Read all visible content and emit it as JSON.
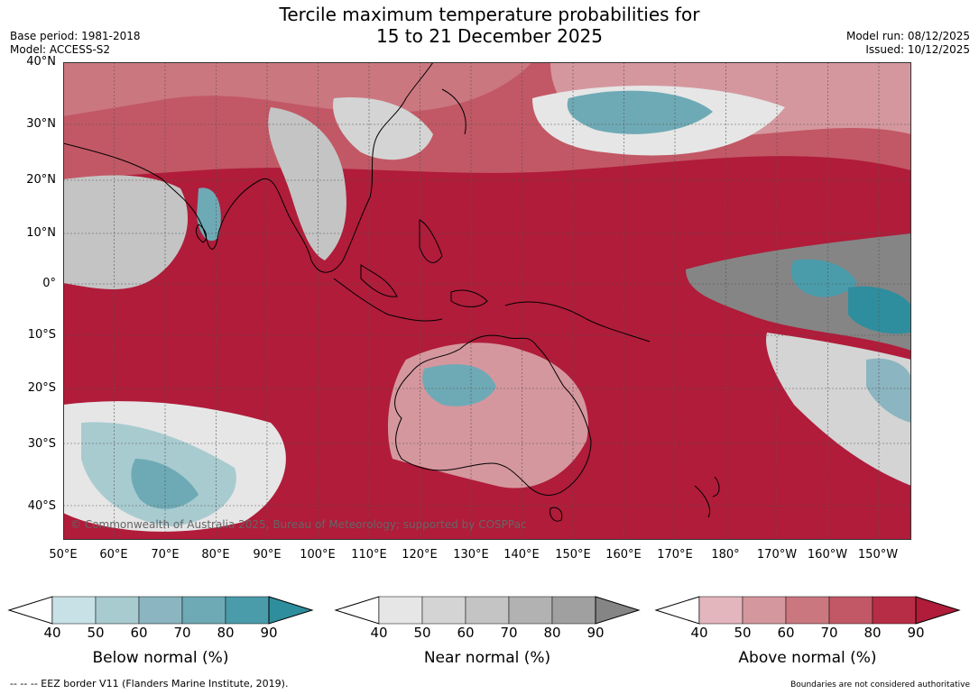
{
  "title_line1": "Tercile maximum temperature probabilities for",
  "title_line2": "15 to 21 December 2025",
  "base_period": "Base period: 1981-2018",
  "model": "Model: ACCESS-S2",
  "model_run": "Model run: 08/12/2025",
  "issued": "Issued: 10/12/2025",
  "copyright": "© Commonwealth of Australia 2025, Bureau of Meteorology; supported by COSPPac",
  "lat_labels": [
    "40°N",
    "30°N",
    "20°N",
    "10°N",
    "0°",
    "10°S",
    "20°S",
    "30°S",
    "40°S"
  ],
  "lon_labels": [
    "50°E",
    "60°E",
    "70°E",
    "80°E",
    "90°E",
    "100°E",
    "110°E",
    "120°E",
    "130°E",
    "140°E",
    "150°E",
    "160°E",
    "170°E",
    "180°",
    "170°W",
    "160°W",
    "150°W"
  ],
  "colorbars": [
    {
      "label": "Below normal (%)",
      "ticks": [
        "40",
        "50",
        "60",
        "70",
        "80",
        "90"
      ],
      "colors": [
        "#c8e1e7",
        "#a8cbd0",
        "#8bb5c0",
        "#6eaab5",
        "#4a9cab",
        "#2e8e9d"
      ]
    },
    {
      "label": "Near normal (%)",
      "ticks": [
        "40",
        "50",
        "60",
        "70",
        "80",
        "90"
      ],
      "colors": [
        "#e6e6e6",
        "#d4d4d4",
        "#c4c4c4",
        "#b2b2b2",
        "#a0a0a0",
        "#858585"
      ]
    },
    {
      "label": "Above normal (%)",
      "ticks": [
        "40",
        "50",
        "60",
        "70",
        "80",
        "90"
      ],
      "colors": [
        "#e3b6bd",
        "#d5979e",
        "#cb7780",
        "#c25865",
        "#b82d46",
        "#b01c3a"
      ]
    }
  ],
  "footer_left": "--  --  -- EEZ border V11 (Flanders Marine Institute, 2019).",
  "footer_right": "Boundaries are not considered authoritative"
}
